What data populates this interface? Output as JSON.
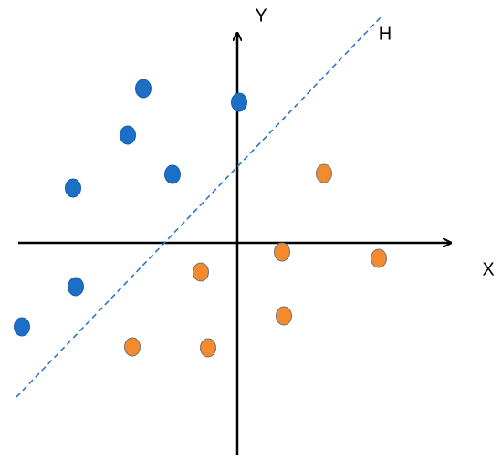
{
  "axes": {
    "y_label": "Y",
    "x_label": "X"
  },
  "hyperplane": {
    "label": "H"
  }
}
